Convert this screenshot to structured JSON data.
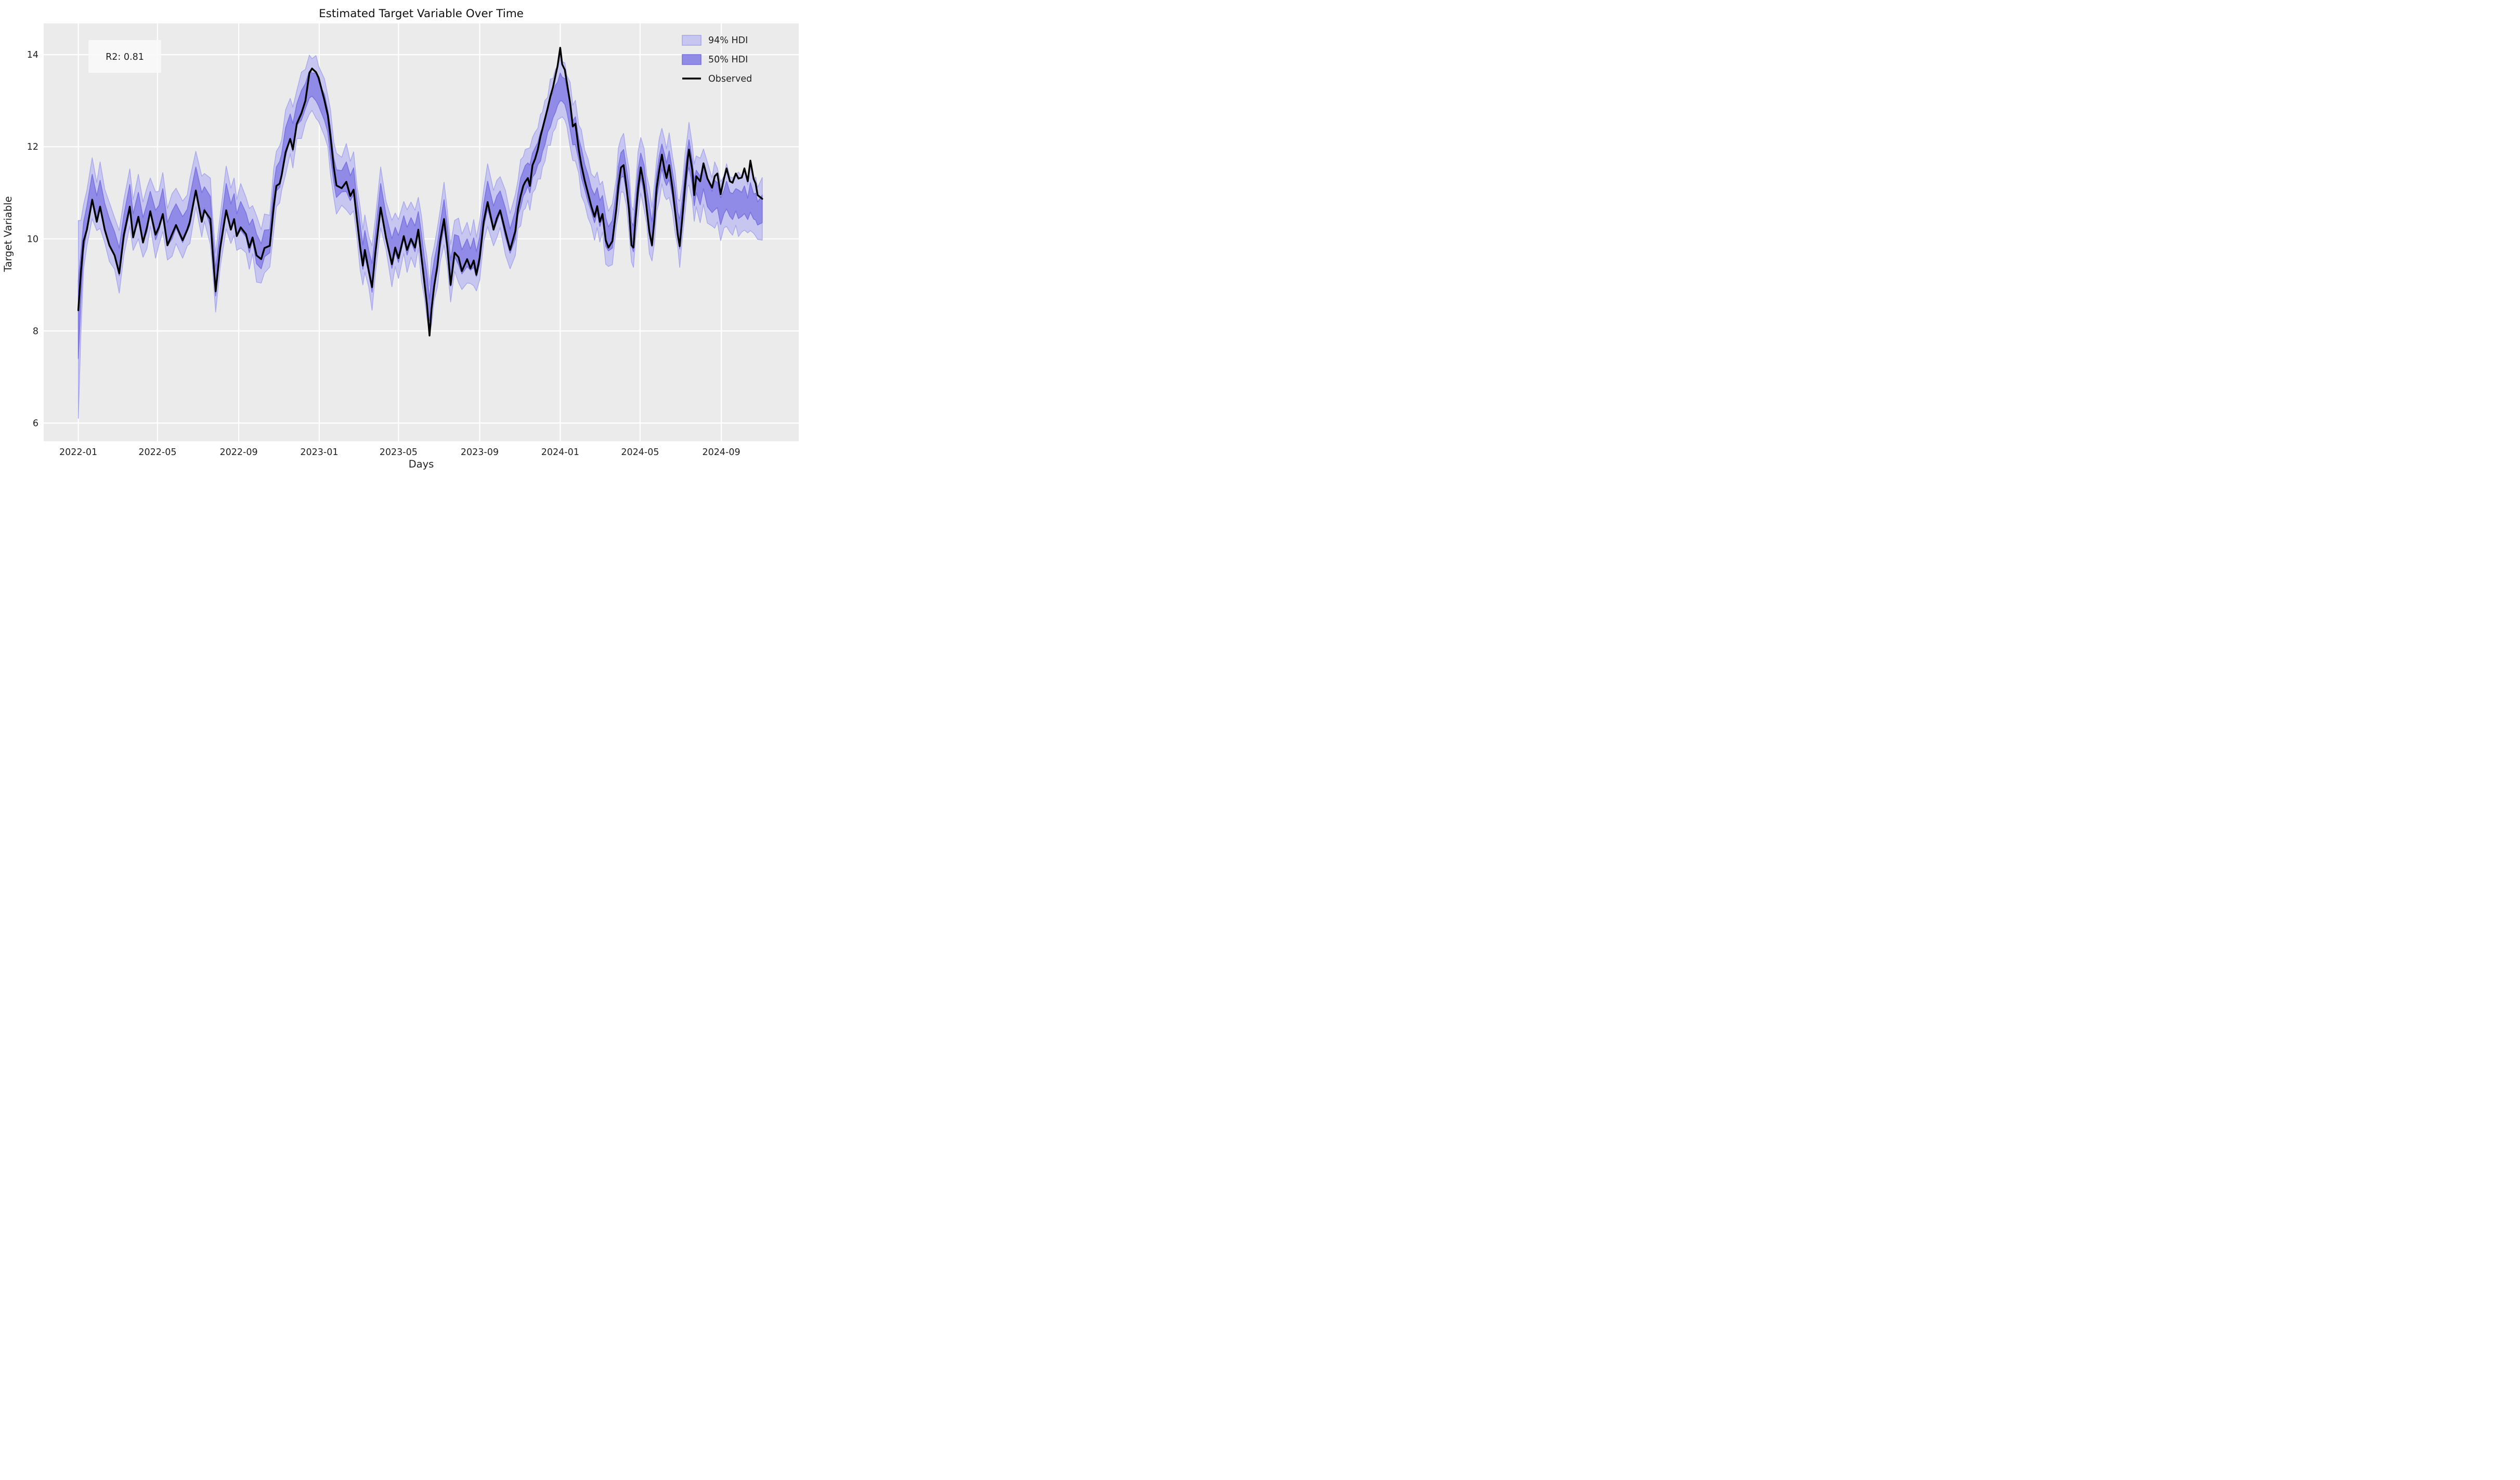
{
  "title": "Estimated Target Variable Over Time",
  "axes": {
    "xlabel": "Days",
    "ylabel": "Target Variable",
    "y_ticks": [
      6,
      8,
      10,
      12,
      14
    ],
    "x_tick_labels": [
      "2022-01",
      "2022-05",
      "2022-09",
      "2023-01",
      "2023-05",
      "2023-09",
      "2024-01",
      "2024-05",
      "2024-09"
    ],
    "x_tick_days": [
      0,
      120,
      243,
      365,
      485,
      608,
      730,
      851,
      974
    ]
  },
  "annotation": {
    "text": "R2: 0.81"
  },
  "legend": [
    {
      "label": "94% HDI",
      "type": "patch"
    },
    {
      "label": "50% HDI",
      "type": "patch"
    },
    {
      "label": "Observed",
      "type": "line"
    }
  ],
  "colors": {
    "figure_bg": "#ffffff",
    "axes_bg": "#ebebeb",
    "grid": "#ffffff",
    "hdi94_fill": "#c7c6f0",
    "hdi94_edge": "#a9a7ec",
    "hdi50_fill": "#8f8be6",
    "hdi50_edge": "#7b74e0",
    "observed": "#000000",
    "text": "#1f1f1f",
    "annot_bg": "#fafafa"
  },
  "chart_data": {
    "type": "line",
    "title": "Estimated Target Variable Over Time",
    "xlabel": "Days",
    "ylabel": "Target Variable",
    "x_unit": "days since 2022-01-01",
    "xlim_days": [
      -52,
      1091
    ],
    "ylim": [
      5.6,
      14.68
    ],
    "grid": true,
    "legend_position": "upper right",
    "r_squared": 0.81,
    "days": [
      0,
      4,
      8,
      13,
      21,
      28,
      33,
      40,
      47,
      55,
      62,
      69,
      78,
      83,
      91,
      98,
      104,
      109,
      117,
      122,
      128,
      135,
      142,
      148,
      158,
      165,
      169,
      178,
      187,
      191,
      200,
      203,
      208,
      215,
      224,
      231,
      236,
      240,
      246,
      254,
      259,
      264,
      270,
      277,
      282,
      290,
      296,
      300,
      305,
      308,
      314,
      321,
      325,
      331,
      338,
      344,
      350,
      354,
      360,
      364,
      373,
      378,
      382,
      387,
      391,
      399,
      406,
      412,
      417,
      422,
      427,
      431,
      434,
      440,
      445,
      450,
      458,
      466,
      475,
      480,
      485,
      493,
      498,
      504,
      510,
      515,
      520,
      524,
      528,
      532,
      535,
      539,
      544,
      548,
      554,
      559,
      564,
      570,
      576,
      581,
      589,
      594,
      599,
      603,
      608,
      614,
      620,
      629,
      634,
      639,
      647,
      654,
      662,
      666,
      670,
      674,
      677,
      681,
      684,
      688,
      692,
      696,
      700,
      703,
      707,
      711,
      715,
      719,
      723,
      726,
      730,
      733,
      737,
      740,
      745,
      749,
      753,
      758,
      762,
      767,
      772,
      777,
      782,
      786,
      790,
      794,
      799,
      803,
      809,
      815,
      818,
      822,
      826,
      830,
      834,
      838,
      841,
      844,
      848,
      852,
      857,
      861,
      865,
      869,
      873,
      876,
      880,
      884,
      888,
      891,
      895,
      900,
      904,
      908,
      911,
      915,
      919,
      923,
      925,
      930,
      933,
      936,
      942,
      947,
      953,
      960,
      964,
      968,
      973,
      978,
      982,
      987,
      991,
      996,
      1000,
      1005,
      1009,
      1014,
      1018,
      1023,
      1026,
      1029,
      1036
    ],
    "observed": [
      8.45,
      9.3,
      9.95,
      10.2,
      10.85,
      10.37,
      10.7,
      10.2,
      9.86,
      9.64,
      9.25,
      10.09,
      10.7,
      10.03,
      10.48,
      9.92,
      10.25,
      10.6,
      10.09,
      10.25,
      10.54,
      9.86,
      10.1,
      10.3,
      9.97,
      10.2,
      10.37,
      11.05,
      10.37,
      10.62,
      10.43,
      9.81,
      8.86,
      9.81,
      10.62,
      10.2,
      10.43,
      10.06,
      10.25,
      10.1,
      9.81,
      10.03,
      9.64,
      9.56,
      9.8,
      9.85,
      10.71,
      11.15,
      11.2,
      11.38,
      11.88,
      12.17,
      11.94,
      12.5,
      12.73,
      13.0,
      13.6,
      13.7,
      13.62,
      13.5,
      13.0,
      12.68,
      12.22,
      11.55,
      11.16,
      11.1,
      11.24,
      10.93,
      11.07,
      10.43,
      9.81,
      9.42,
      9.76,
      9.3,
      8.95,
      9.7,
      10.68,
      10.03,
      9.45,
      9.81,
      9.58,
      10.06,
      9.76,
      10.0,
      9.81,
      10.2,
      9.58,
      9.08,
      8.58,
      7.9,
      8.47,
      8.97,
      9.42,
      9.95,
      10.43,
      9.81,
      9.0,
      9.7,
      9.6,
      9.3,
      9.56,
      9.36,
      9.53,
      9.22,
      9.6,
      10.37,
      10.8,
      10.2,
      10.45,
      10.62,
      10.15,
      9.76,
      10.17,
      10.65,
      10.93,
      11.15,
      11.24,
      11.32,
      11.15,
      11.6,
      11.74,
      11.94,
      12.22,
      12.39,
      12.61,
      12.84,
      13.09,
      13.29,
      13.56,
      13.76,
      14.15,
      13.79,
      13.67,
      13.4,
      12.95,
      12.44,
      12.5,
      11.94,
      11.6,
      11.27,
      10.99,
      10.71,
      10.48,
      10.71,
      10.37,
      10.54,
      9.97,
      9.81,
      9.95,
      10.65,
      11.15,
      11.55,
      11.6,
      11.15,
      10.65,
      9.86,
      9.81,
      10.43,
      11.1,
      11.55,
      11.15,
      10.65,
      10.15,
      9.86,
      10.48,
      11.1,
      11.5,
      11.83,
      11.5,
      11.32,
      11.6,
      11.1,
      10.6,
      10.09,
      9.84,
      10.48,
      11.15,
      11.72,
      11.94,
      11.5,
      10.95,
      11.36,
      11.25,
      11.64,
      11.31,
      11.11,
      11.36,
      11.42,
      10.97,
      11.31,
      11.53,
      11.25,
      11.22,
      11.42,
      11.31,
      11.33,
      11.53,
      11.25,
      11.7,
      11.3,
      11.2,
      10.95,
      10.87
    ],
    "predicted_mean": [
      8.25,
      9.2,
      10.05,
      10.45,
      11.1,
      10.7,
      10.95,
      10.5,
      10.15,
      9.9,
      9.5,
      10.25,
      10.9,
      10.3,
      10.7,
      10.2,
      10.45,
      10.8,
      10.3,
      10.45,
      10.8,
      10.1,
      10.3,
      10.5,
      10.2,
      10.4,
      10.6,
      11.3,
      10.7,
      10.9,
      10.6,
      10.0,
      9.05,
      9.95,
      10.9,
      10.5,
      10.7,
      10.3,
      10.5,
      10.3,
      10.0,
      10.2,
      9.78,
      9.62,
      9.9,
      9.95,
      10.85,
      11.3,
      11.4,
      11.6,
      12.1,
      12.45,
      12.2,
      12.7,
      12.9,
      13.1,
      13.35,
      13.35,
      13.3,
      13.15,
      12.85,
      12.55,
      12.1,
      11.5,
      11.2,
      11.25,
      11.35,
      11.1,
      11.25,
      10.6,
      10.0,
      9.6,
      9.9,
      9.5,
      9.15,
      9.85,
      10.9,
      10.3,
      9.68,
      9.98,
      9.78,
      10.25,
      9.95,
      10.2,
      10.0,
      10.35,
      9.78,
      9.35,
      8.95,
      8.45,
      8.85,
      9.25,
      9.6,
      10.05,
      10.55,
      10.0,
      9.25,
      9.85,
      9.75,
      9.5,
      9.7,
      9.55,
      9.7,
      9.45,
      9.75,
      10.5,
      10.95,
      10.45,
      10.65,
      10.8,
      10.35,
      9.95,
      10.3,
      10.75,
      11.0,
      11.2,
      11.3,
      11.4,
      11.3,
      11.6,
      11.7,
      11.85,
      12.0,
      12.15,
      12.35,
      12.55,
      12.75,
      12.9,
      13.05,
      13.15,
      13.3,
      13.25,
      13.2,
      13.0,
      12.7,
      12.3,
      12.35,
      11.95,
      11.65,
      11.35,
      11.1,
      10.85,
      10.65,
      10.85,
      10.55,
      10.7,
      10.15,
      10.0,
      10.1,
      10.8,
      11.25,
      11.6,
      11.65,
      11.3,
      10.85,
      10.1,
      10.0,
      10.55,
      11.2,
      11.6,
      11.3,
      10.85,
      10.4,
      10.1,
      10.6,
      11.15,
      11.5,
      11.8,
      11.55,
      11.4,
      11.6,
      11.2,
      10.8,
      10.35,
      10.1,
      10.6,
      11.2,
      11.7,
      11.85,
      11.45,
      11.0,
      11.25,
      11.05,
      11.35,
      11.0,
      10.8,
      10.95,
      10.95,
      10.6,
      10.8,
      10.95,
      10.75,
      10.7,
      10.85,
      10.75,
      10.75,
      10.85,
      10.65,
      10.9,
      10.7,
      10.7,
      10.55,
      10.65
    ],
    "hdi94_halfwidth_pattern": [
      0.62,
      0.55,
      0.7,
      0.6,
      0.66,
      0.52,
      0.72,
      0.58,
      0.64,
      0.56,
      0.68,
      0.6
    ],
    "hdi50_halfwidth_pattern": [
      0.28,
      0.24,
      0.31,
      0.26,
      0.3,
      0.23,
      0.32,
      0.27,
      0.29,
      0.25,
      0.3,
      0.26
    ],
    "hdi94_initial_halfwidths": [
      2.15,
      1.2
    ],
    "hdi50_initial_halfwidths": [
      0.85,
      0.5
    ]
  }
}
